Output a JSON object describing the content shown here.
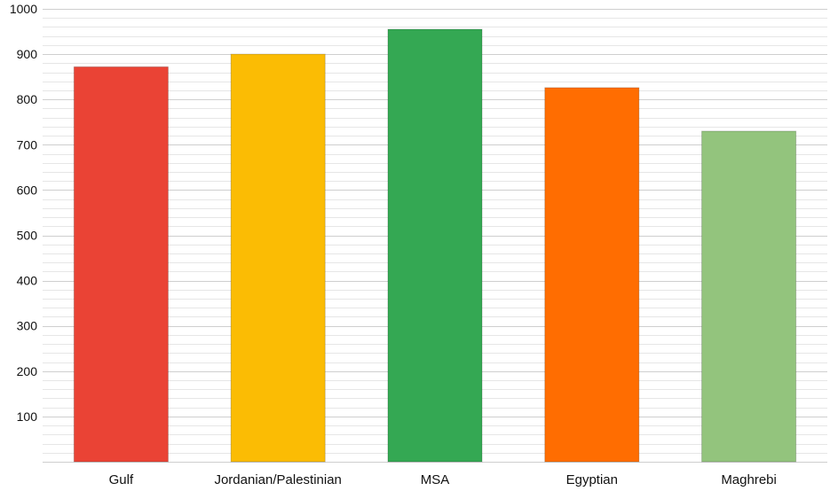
{
  "chart_data": {
    "type": "bar",
    "title": "",
    "xlabel": "",
    "ylabel": "",
    "categories": [
      "Gulf",
      "Jordanian/Palestinian",
      "MSA",
      "Egyptian",
      "Maghrebi"
    ],
    "values": [
      872,
      900,
      955,
      826,
      730
    ],
    "colors": [
      "#ea4335",
      "#fbbc04",
      "#34a853",
      "#ff6d01",
      "#93c47d"
    ],
    "ylim": [
      0,
      1000
    ],
    "yticks": [
      100,
      200,
      300,
      400,
      500,
      600,
      700,
      800,
      900,
      1000
    ],
    "ytick_labels": [
      "100",
      "200",
      "300",
      "400",
      "500",
      "600",
      "700",
      "800",
      "900",
      "1000"
    ],
    "grid": true,
    "minor_grid": true,
    "legend": "none"
  }
}
